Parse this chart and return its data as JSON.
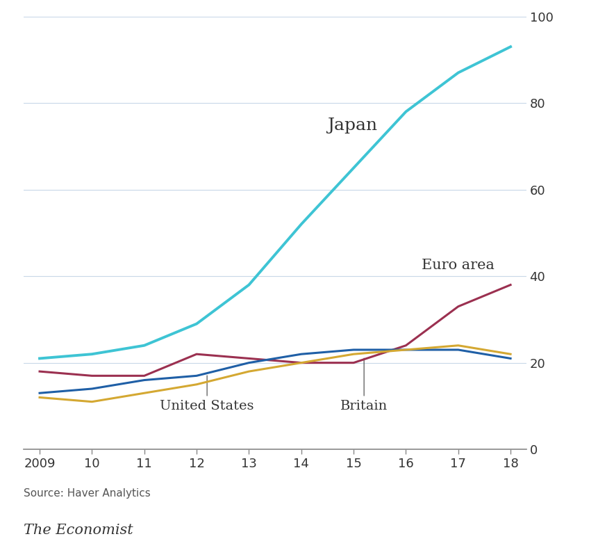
{
  "x_indices": [
    0,
    1,
    2,
    3,
    4,
    5,
    6,
    7,
    8,
    9
  ],
  "xtick_labels": [
    "2009",
    "10",
    "11",
    "12",
    "13",
    "14",
    "15",
    "16",
    "17",
    "18"
  ],
  "japan": [
    21,
    22,
    24,
    29,
    38,
    52,
    65,
    78,
    87,
    93
  ],
  "euro_area": [
    18,
    17,
    17,
    22,
    21,
    20,
    20,
    24,
    33,
    38
  ],
  "united_states": [
    13,
    14,
    16,
    17,
    20,
    22,
    23,
    23,
    23,
    21
  ],
  "britain": [
    12,
    11,
    13,
    15,
    18,
    20,
    22,
    23,
    24,
    22
  ],
  "colors": {
    "japan": "#3ec4d4",
    "euro_area": "#9b3050",
    "united_states": "#1f5fa6",
    "britain": "#d4a832"
  },
  "ylim": [
    0,
    100
  ],
  "yticks": [
    0,
    20,
    40,
    60,
    80,
    100
  ],
  "source_text": "Source: Haver Analytics",
  "branding_text": "The Economist",
  "label_japan": "Japan",
  "label_euro_area": "Euro area",
  "label_us": "United States",
  "label_britain": "Britain",
  "line_width": 2.2,
  "background_color": "#ffffff",
  "grid_color": "#c8d8e8"
}
